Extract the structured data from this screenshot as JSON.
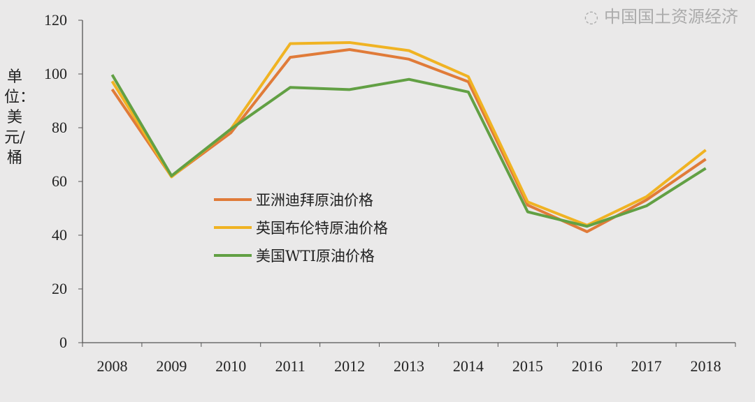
{
  "chart_data": {
    "type": "line",
    "title": "",
    "xlabel": "",
    "ylabel": "单位：美元/桶",
    "categories": [
      "2008",
      "2009",
      "2010",
      "2011",
      "2012",
      "2013",
      "2014",
      "2015",
      "2016",
      "2017",
      "2018"
    ],
    "ylim": [
      0,
      120
    ],
    "yticks": [
      0,
      20,
      40,
      60,
      80,
      100,
      120
    ],
    "grid": false,
    "legend_position": "center-left",
    "series": [
      {
        "name": "亚洲迪拜原油价格",
        "color": "#e07b39",
        "values": [
          94.3,
          61.8,
          78.1,
          106.2,
          109.1,
          105.5,
          97.1,
          51.2,
          41.3,
          53.1,
          68.3
        ]
      },
      {
        "name": "英国布伦特原油价格",
        "color": "#f0b323",
        "values": [
          97.3,
          61.7,
          79.5,
          111.3,
          111.7,
          108.7,
          99.0,
          52.4,
          43.7,
          54.3,
          71.7
        ]
      },
      {
        "name": "美国WTI原油价格",
        "color": "#62a044",
        "values": [
          99.7,
          62.1,
          79.5,
          95.0,
          94.2,
          98.0,
          93.3,
          48.7,
          43.3,
          50.9,
          64.9
        ]
      }
    ]
  },
  "watermark": "中国国土资源经济"
}
